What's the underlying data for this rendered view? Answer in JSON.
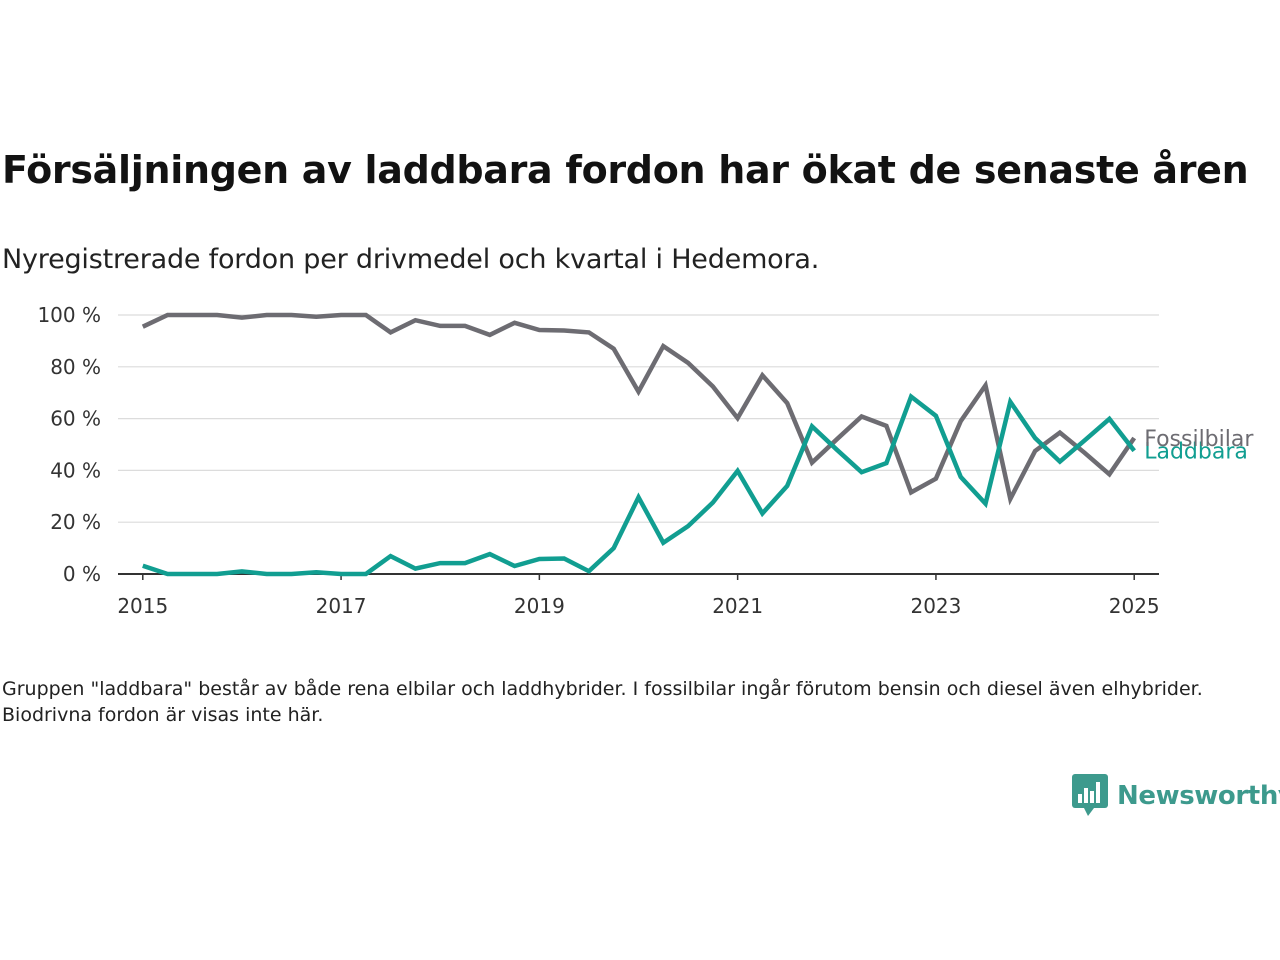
{
  "header": {
    "title": "Försäljningen av laddbara fordon har ökat de senaste åren",
    "subtitle": "Nyregistrerade fordon per drivmedel och kvartal i Hedemora."
  },
  "footer": {
    "note": "Gruppen \"laddbara\" består av både rena elbilar och laddhybrider. I fossilbilar ingår förutom bensin och diesel även elhybrider. Biodrivna fordon är visas inte här.",
    "brand": "Newsworthy",
    "brand_icon": "bar-chart-speech-bubble-icon",
    "brand_color": "#3d9a8d"
  },
  "chart_data": {
    "type": "line",
    "x": [
      2015.0,
      2015.25,
      2015.5,
      2015.75,
      2016.0,
      2016.25,
      2016.5,
      2016.75,
      2017.0,
      2017.25,
      2017.5,
      2017.75,
      2018.0,
      2018.25,
      2018.5,
      2018.75,
      2019.0,
      2019.25,
      2019.5,
      2019.75,
      2020.0,
      2020.25,
      2020.5,
      2020.75,
      2021.0,
      2021.25,
      2021.5,
      2021.75,
      2022.0,
      2022.25,
      2022.5,
      2022.75,
      2023.0,
      2023.25,
      2023.5,
      2023.75,
      2024.0,
      2024.25,
      2024.5,
      2024.75,
      2025.0
    ],
    "series": [
      {
        "name": "Fossilbilar",
        "color": "#6d6c72",
        "values": [
          95.5,
          100,
          100,
          100,
          99,
          100,
          100,
          99.3,
          100,
          100,
          93.3,
          98,
          95.8,
          95.8,
          92.3,
          97,
          94.2,
          94,
          93.3,
          87,
          70.4,
          88,
          81.5,
          72.4,
          60.2,
          76.7,
          66,
          43,
          52,
          60.8,
          57.2,
          31.5,
          36.8,
          59,
          72.8,
          29,
          47.5,
          54.6,
          46.8,
          38.5,
          52.5
        ]
      },
      {
        "name": "Laddbara",
        "color": "#119e91",
        "values": [
          3.2,
          0,
          0,
          0,
          1,
          0,
          0,
          0.7,
          0,
          0,
          6.9,
          2.1,
          4.2,
          4.2,
          7.7,
          3.1,
          5.8,
          6,
          1.1,
          10,
          29.6,
          12.1,
          18.5,
          27.6,
          39.8,
          23.4,
          34,
          57,
          48,
          39.3,
          42.8,
          68.5,
          61.1,
          37.5,
          27.2,
          66.5,
          52.5,
          43.4,
          51.6,
          59.9,
          47.6
        ]
      }
    ],
    "ylim": [
      0,
      100
    ],
    "yticks": [
      0,
      20,
      40,
      60,
      80,
      100
    ],
    "ytick_labels": [
      "0 %",
      "20 %",
      "40 %",
      "60 %",
      "80 %",
      "100 %"
    ],
    "xlim": [
      2014.75,
      2025.25
    ],
    "xticks": [
      2015,
      2017,
      2019,
      2021,
      2023,
      2025
    ],
    "xtick_labels": [
      "2015",
      "2017",
      "2019",
      "2021",
      "2023",
      "2025"
    ],
    "grid": "horizontal",
    "legend": "direct labels at line ends"
  }
}
